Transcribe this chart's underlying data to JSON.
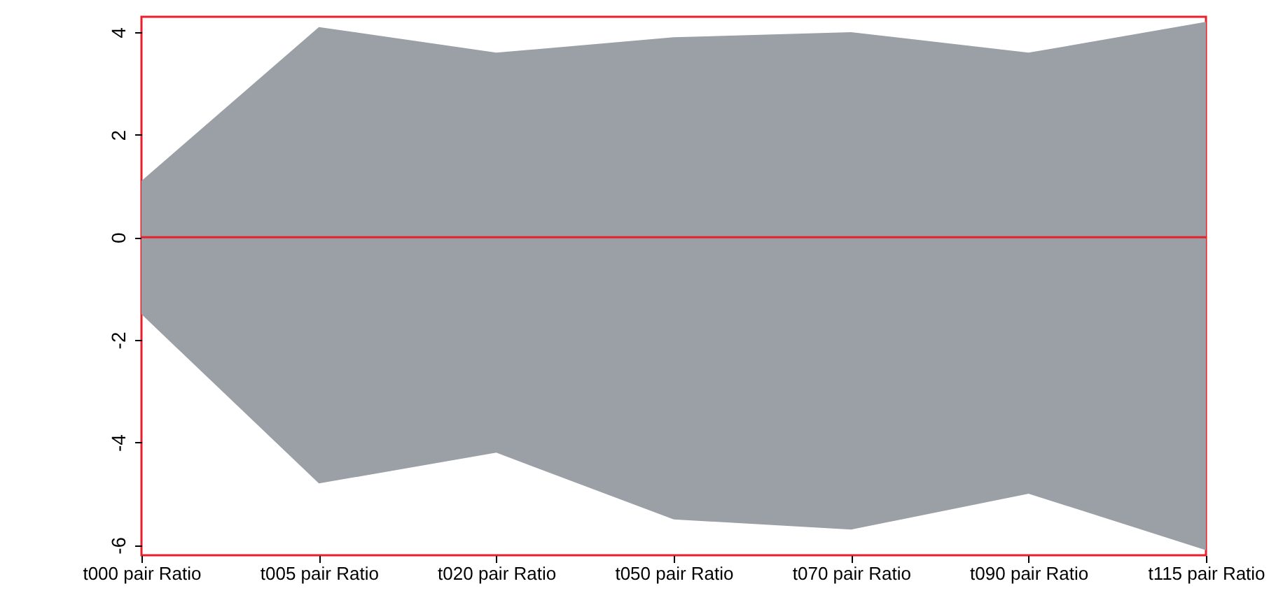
{
  "chart_data": {
    "type": "line",
    "categories": [
      "t000 pair Ratio",
      "t005 pair Ratio",
      "t020 pair Ratio",
      "t050 pair Ratio",
      "t070 pair Ratio",
      "t090 pair Ratio",
      "t115 pair Ratio"
    ],
    "series": [
      {
        "color": "#9aa0a6",
        "values": [
          null,
          null,
          null,
          null,
          null,
          null,
          null
        ],
        "lower": [
          -1.5,
          -4.8,
          -4.2,
          -5.5,
          -5.7,
          -5.0,
          -6.1
        ],
        "upper": [
          1.1,
          4.1,
          3.6,
          3.9,
          4.0,
          3.6,
          4.2
        ]
      }
    ],
    "ylim": [
      -6.2,
      4.3
    ],
    "yticks": [
      -6,
      -4,
      -2,
      0,
      2,
      4
    ],
    "grid": false,
    "ref_lines": [
      {
        "axis": "y",
        "value": 0,
        "color": "#e8202a"
      }
    ]
  }
}
